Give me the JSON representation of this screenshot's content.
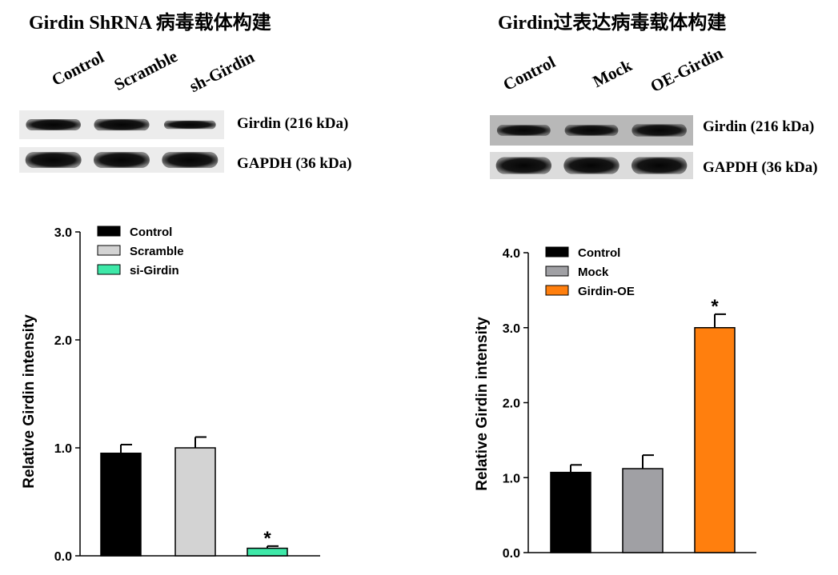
{
  "panels": [
    {
      "title": "Girdin ShRNA 病毒载体构建",
      "lanes": [
        "Control",
        "Scramble",
        "sh-Girdin"
      ],
      "blot_rows": [
        {
          "label": "Girdin (216 kDa)",
          "intensity": [
            0.92,
            0.95,
            0.7
          ],
          "background": "#ececec"
        },
        {
          "label": "GAPDH (36 kDa)",
          "intensity": [
            1.0,
            1.0,
            1.0
          ],
          "background": "#ececec"
        }
      ]
    },
    {
      "title": "Girdin过表达病毒载体构建",
      "lanes": [
        "Control",
        "Mock",
        "OE-Girdin"
      ],
      "blot_rows": [
        {
          "label": "Girdin (216 kDa)",
          "intensity": [
            0.85,
            0.85,
            0.95
          ],
          "background": "#b8b8b8"
        },
        {
          "label": "GAPDH (36 kDa)",
          "intensity": [
            1.0,
            1.0,
            1.0
          ],
          "background": "#dcdcdc"
        }
      ]
    }
  ],
  "chart_data": [
    {
      "type": "bar",
      "ylabel": "Relative Girdin intensity",
      "ylim": [
        0,
        3.0
      ],
      "yticks": [
        0.0,
        1.0,
        2.0,
        3.0
      ],
      "tick_labels": [
        "0.0",
        "1.0",
        "2.0",
        "3.0"
      ],
      "legend_placement": "top-left",
      "series": [
        {
          "name": "Control",
          "value": 0.95,
          "error": 0.08,
          "color": "#000000",
          "marker": ""
        },
        {
          "name": "Scramble",
          "value": 1.0,
          "error": 0.1,
          "color": "#d3d3d3",
          "marker": ""
        },
        {
          "name": "si-Girdin",
          "value": 0.07,
          "error": 0.02,
          "color": "#3ee8a8",
          "marker": "*"
        }
      ]
    },
    {
      "type": "bar",
      "ylabel": "Relative Girdin intensity",
      "ylim": [
        0,
        4.0
      ],
      "yticks": [
        0.0,
        1.0,
        2.0,
        3.0,
        4.0
      ],
      "tick_labels": [
        "0.0",
        "1.0",
        "2.0",
        "3.0",
        "4.0"
      ],
      "legend_placement": "top-left",
      "series": [
        {
          "name": "Control",
          "value": 1.07,
          "error": 0.1,
          "color": "#000000",
          "marker": ""
        },
        {
          "name": "Mock",
          "value": 1.12,
          "error": 0.18,
          "color": "#a0a0a4",
          "marker": ""
        },
        {
          "name": "Girdin-OE",
          "value": 3.0,
          "error": 0.18,
          "color": "#ff7f0e",
          "marker": "*"
        }
      ]
    }
  ]
}
